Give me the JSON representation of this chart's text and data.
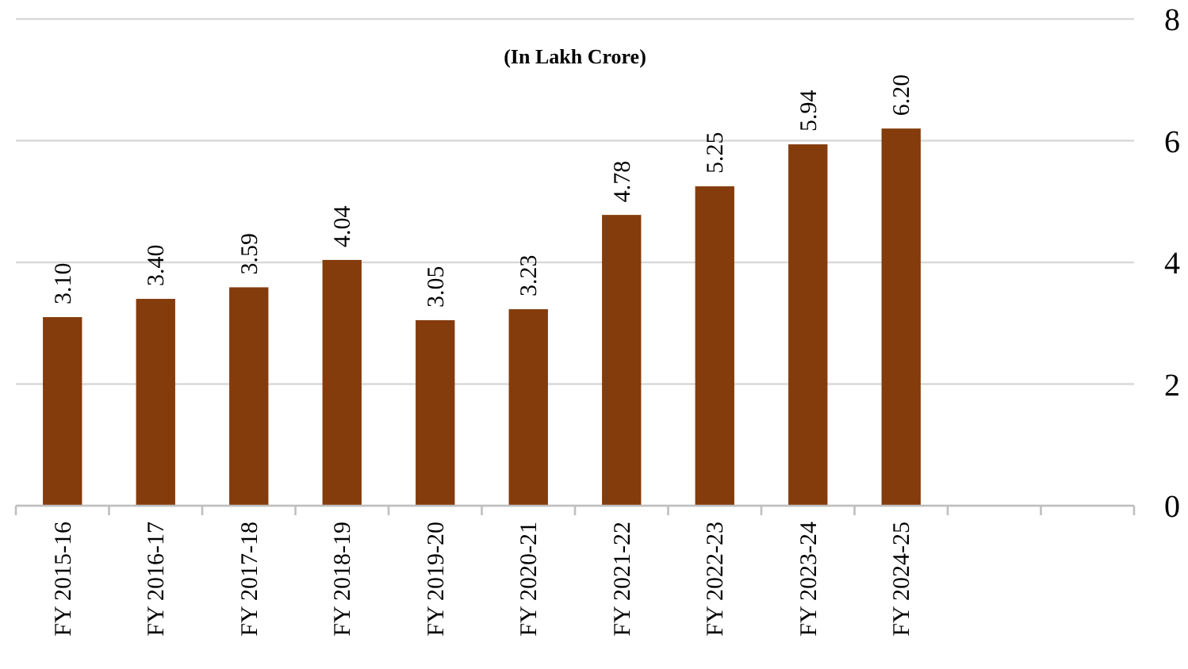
{
  "chart_data": {
    "type": "bar",
    "subtitle": "(In Lakh Crore)",
    "categories": [
      "FY 2015-16",
      "FY 2016-17",
      "FY 2017-18",
      "FY 2018-19",
      "FY 2019-20",
      "FY 2020-21",
      "FY 2021-22",
      "FY 2022-23",
      "FY 2023-24",
      "FY 2024-25",
      null,
      null
    ],
    "values": [
      3.1,
      3.4,
      3.59,
      4.04,
      3.05,
      3.23,
      4.78,
      5.25,
      5.94,
      6.2,
      null,
      null
    ],
    "value_labels": [
      "3.10",
      "3.40",
      "3.59",
      "4.04",
      "3.05",
      "3.23",
      "4.78",
      "5.25",
      "5.94",
      "6.20",
      null,
      null
    ],
    "color": "#843c0c",
    "ylim": [
      0,
      8
    ],
    "yticks": [
      0,
      2,
      4,
      6,
      8
    ],
    "grid": "y"
  }
}
